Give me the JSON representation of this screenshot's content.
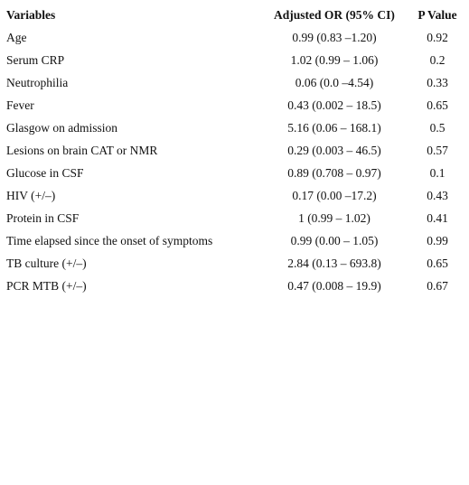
{
  "table": {
    "header": [
      "Variables",
      "Adjusted OR (95% CI)",
      "P Value"
    ],
    "rows": [
      [
        "Age",
        "0.99 (0.83 –1.20)",
        "0.92"
      ],
      [
        "Serum CRP",
        "1.02 (0.99 – 1.06)",
        "0.2"
      ],
      [
        "Neutrophilia",
        "0.06 (0.0 –4.54)",
        "0.33"
      ],
      [
        "Fever",
        "0.43 (0.002 – 18.5)",
        "0.65"
      ],
      [
        "Glasgow on admission",
        "5.16 (0.06 – 168.1)",
        "0.5"
      ],
      [
        "Lesions on brain CAT or NMR",
        "0.29 (0.003 – 46.5)",
        "0.57"
      ],
      [
        "Glucose in CSF",
        "0.89 (0.708 – 0.97)",
        "0.1"
      ],
      [
        "HIV (+/–)",
        "0.17 (0.00 –17.2)",
        "0.43"
      ],
      [
        "Protein in CSF",
        "1 (0.99 – 1.02)",
        "0.41"
      ],
      [
        "Time elapsed since the onset of symptoms",
        "0.99 (0.00 – 1.05)",
        "0.99"
      ],
      [
        "TB culture (+/–)",
        "2.84 (0.13 – 693.8)",
        "0.65"
      ],
      [
        "PCR MTB (+/–)",
        "0.47 (0.008 – 19.9)",
        "0.67"
      ]
    ]
  }
}
